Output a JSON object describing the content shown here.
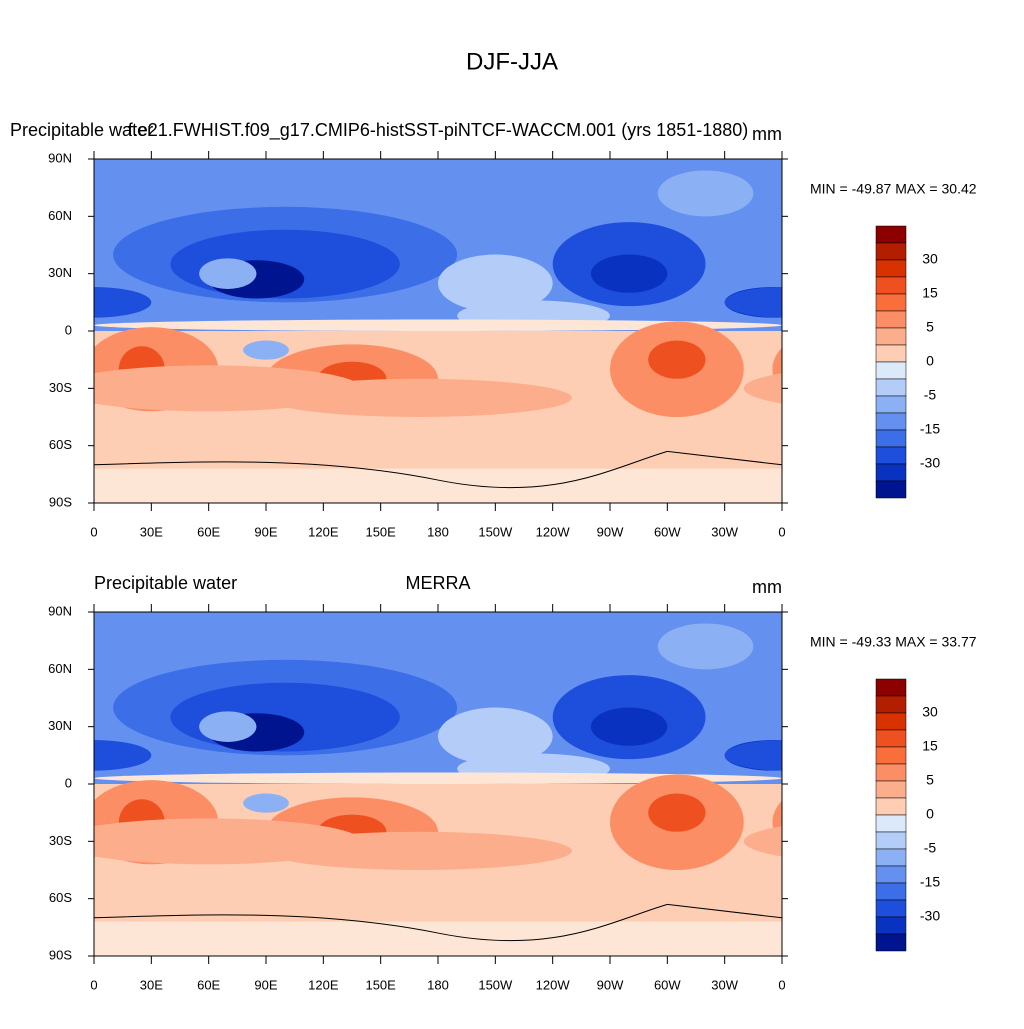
{
  "title": "DJF-JJA",
  "panels": [
    {
      "left_title": "Precipitable water",
      "center_title": "f.e21.FWHIST.f09_g17.CMIP6-histSST-piNTCF-WACCM.001 (yrs 1851-1880)",
      "right_title": "mm",
      "stats": "MIN = -49.87 MAX =  30.42"
    },
    {
      "left_title": "Precipitable water",
      "center_title": "MERRA",
      "right_title": "mm",
      "stats": "MIN = -49.33 MAX =  33.77"
    }
  ],
  "lat_labels": [
    "90N",
    "60N",
    "30N",
    "0",
    "30S",
    "60S",
    "90S"
  ],
  "lon_labels": [
    "0",
    "30E",
    "60E",
    "90E",
    "120E",
    "150E",
    "180",
    "150W",
    "120W",
    "90W",
    "60W",
    "30W",
    "0"
  ],
  "colorbar_labels": [
    "30",
    "15",
    "5",
    "0",
    "-5",
    "-15",
    "-30"
  ],
  "colorbar_colors": [
    "#8c0000",
    "#b41e00",
    "#d73200",
    "#ee5020",
    "#fa6e3c",
    "#fb8e64",
    "#fcae8c",
    "#fdcdb4",
    "#dbe9fb",
    "#b4cdf8",
    "#8cb0f4",
    "#6491f0",
    "#3c6ee8",
    "#1e4edc",
    "#0a32c0",
    "#001490"
  ]
}
